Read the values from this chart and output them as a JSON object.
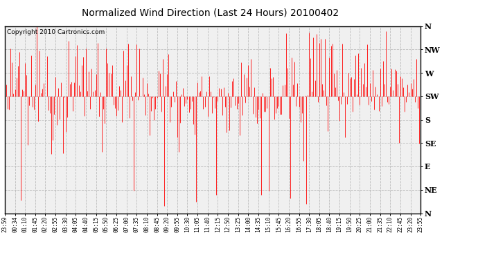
{
  "title": "Normalized Wind Direction (Last 24 Hours) 20100402",
  "copyright": "Copyright 2010 Cartronics.com",
  "background_color": "#ffffff",
  "plot_bg_color": "#f0f0f0",
  "line_color": "#ff0000",
  "ytick_labels": [
    "N",
    "NW",
    "W",
    "SW",
    "S",
    "SE",
    "E",
    "NE",
    "N"
  ],
  "ytick_values": [
    1.0,
    0.875,
    0.75,
    0.625,
    0.5,
    0.375,
    0.25,
    0.125,
    0.0
  ],
  "xtick_labels": [
    "23:59",
    "00:34",
    "01:10",
    "01:45",
    "02:20",
    "02:55",
    "03:30",
    "04:05",
    "04:40",
    "05:15",
    "05:50",
    "06:25",
    "07:00",
    "07:35",
    "08:10",
    "08:45",
    "09:20",
    "09:55",
    "10:30",
    "11:05",
    "11:40",
    "12:15",
    "12:50",
    "13:25",
    "14:00",
    "14:35",
    "15:10",
    "15:45",
    "16:20",
    "16:55",
    "17:30",
    "18:05",
    "18:40",
    "19:15",
    "19:50",
    "20:25",
    "21:00",
    "21:35",
    "22:10",
    "22:45",
    "23:20",
    "23:55"
  ],
  "grid_color": "#bbbbbb",
  "grid_linestyle": "--",
  "ymin": 0.0,
  "ymax": 1.0,
  "n_points": 288,
  "seed": 12345,
  "base_early": 0.62,
  "base_mid": 0.6,
  "base_mid2": 0.58,
  "base_late": 0.72,
  "base_very_late": 0.7,
  "noise_early": 0.12,
  "noise_mid": 0.1,
  "noise_late": 0.14
}
